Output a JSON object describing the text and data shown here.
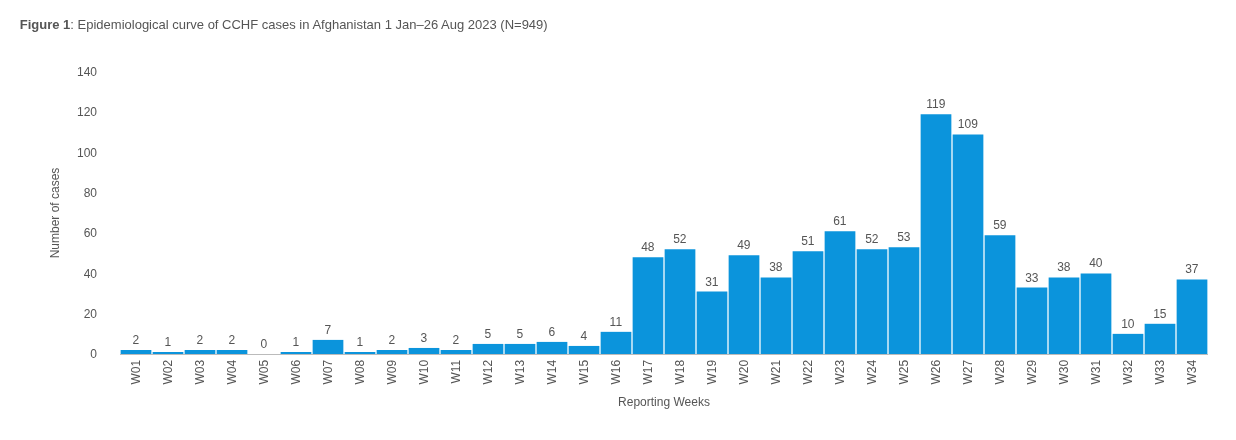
{
  "chart_data": {
    "type": "bar",
    "title": "Figure 1: Epidemiological curve of CCHF cases in Afghanistan 1 Jan–26 Aug 2023 (N=949)",
    "xlabel": "Reporting Weeks",
    "ylabel": "Number of cases",
    "categories": [
      "W01",
      "W02",
      "W03",
      "W04",
      "W05",
      "W06",
      "W07",
      "W08",
      "W09",
      "W10",
      "W11",
      "W12",
      "W13",
      "W14",
      "W15",
      "W16",
      "W17",
      "W18",
      "W19",
      "W20",
      "W21",
      "W22",
      "W23",
      "W24",
      "W25",
      "W26",
      "W27",
      "W28",
      "W29",
      "W30",
      "W31",
      "W32",
      "W33",
      "W34"
    ],
    "values": [
      2,
      1,
      2,
      2,
      0,
      1,
      7,
      1,
      2,
      3,
      2,
      5,
      5,
      6,
      4,
      11,
      48,
      52,
      31,
      49,
      38,
      51,
      61,
      52,
      53,
      119,
      109,
      59,
      33,
      38,
      40,
      10,
      15,
      37
    ],
    "color": "#0b94dc",
    "ylim": [
      0,
      140
    ],
    "yticks": [
      0,
      20,
      40,
      60,
      80,
      100,
      120,
      140
    ],
    "data_labels": true
  }
}
